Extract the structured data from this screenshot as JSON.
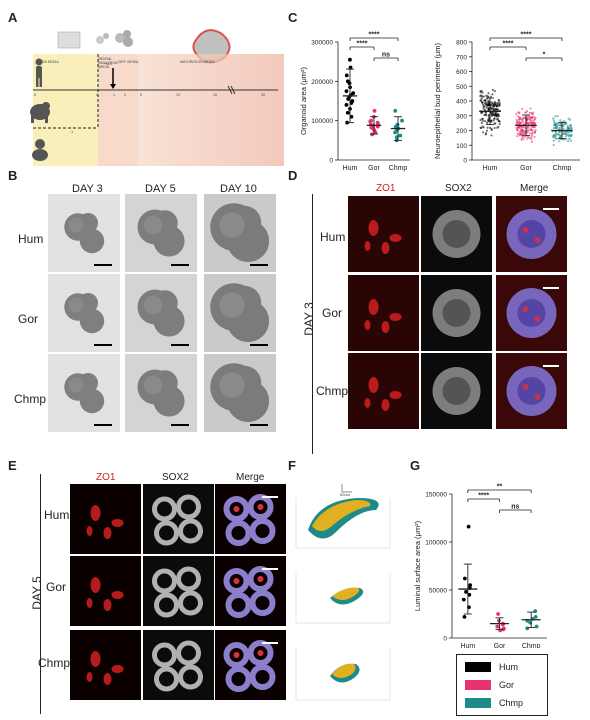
{
  "panels": {
    "A": "A",
    "B": "B",
    "C": "C",
    "D": "D",
    "E": "E",
    "F": "F",
    "G": "G"
  },
  "species": [
    "Hum",
    "Gor",
    "Chmp"
  ],
  "panel_a": {
    "stages": [
      "EB MEDIA",
      "NEURAL INDUCTION MEDIA",
      "DIFF. MEDIA",
      "MATURATION MEDIA"
    ],
    "mg_label": "+MG",
    "ticks": [
      "-5",
      "0",
      "1",
      "2",
      "5",
      "10",
      "15",
      "20",
      "25"
    ],
    "day_minus1": "-1"
  },
  "panel_b": {
    "days": [
      "DAY 3",
      "DAY 5",
      "DAY 10"
    ],
    "rows": [
      "Hum",
      "Gor",
      "Chmp"
    ]
  },
  "panel_d": {
    "day": "DAY 3",
    "channels": [
      "ZO1",
      "SOX2",
      "Merge"
    ],
    "rows": [
      "Hum",
      "Gor",
      "Chmp"
    ]
  },
  "panel_e": {
    "day": "DAY 5",
    "channels": [
      "ZO1",
      "SOX2",
      "Merge"
    ],
    "rows": [
      "Hum",
      "Gor",
      "Chmp"
    ]
  },
  "panel_f": {
    "scale": "50um"
  },
  "legend": [
    {
      "name": "Hum",
      "color": "#000000"
    },
    {
      "name": "Gor",
      "color": "#e8336f"
    },
    {
      "name": "Chmp",
      "color": "#1f8a8a"
    }
  ],
  "chart_data": [
    {
      "type": "scatter",
      "title": "",
      "ylabel": "Organoid area (μm²)",
      "categories": [
        "Hum",
        "Gor",
        "Chmp"
      ],
      "ylim": [
        0,
        300000
      ],
      "yticks": [
        "0",
        "100000",
        "200000",
        "300000"
      ],
      "colors": [
        "#000000",
        "#e8336f",
        "#1f8a8a"
      ],
      "means": [
        163000,
        88000,
        80000
      ],
      "sd": [
        68000,
        22000,
        30000
      ],
      "points": [
        [
          255000,
          235000,
          215000,
          200000,
          195000,
          185000,
          175000,
          170000,
          165000,
          160000,
          155000,
          150000,
          145000,
          140000,
          130000,
          120000,
          110000,
          95000
        ],
        [
          125000,
          110000,
          100000,
          98000,
          95000,
          92000,
          90000,
          88000,
          85000,
          82000,
          80000,
          75000,
          70000,
          65000
        ],
        [
          125000,
          100000,
          90000,
          85000,
          80000,
          75000,
          70000,
          62000,
          58000,
          50000
        ]
      ],
      "significance": [
        {
          "pair": [
            0,
            2
          ],
          "label": "****"
        },
        {
          "pair": [
            0,
            1
          ],
          "label": "****"
        },
        {
          "pair": [
            1,
            2
          ],
          "label": "ns"
        }
      ]
    },
    {
      "type": "scatter",
      "title": "",
      "ylabel": "Neuroepithelial bud perimeter (μm)",
      "categories": [
        "Hum",
        "Gor",
        "Chmp"
      ],
      "ylim": [
        0,
        800
      ],
      "yticks": [
        "0",
        "100",
        "200",
        "300",
        "400",
        "500",
        "600",
        "700",
        "800"
      ],
      "colors": [
        "#000000",
        "#e8336f",
        "#1f8a8a"
      ],
      "means": [
        330,
        235,
        200
      ],
      "sd": [
        90,
        70,
        55
      ],
      "point_ranges": [
        [
          100,
          610
        ],
        [
          70,
          480
        ],
        [
          60,
          400
        ]
      ],
      "point_counts": [
        180,
        180,
        120
      ],
      "significance": [
        {
          "pair": [
            0,
            2
          ],
          "label": "****"
        },
        {
          "pair": [
            0,
            1
          ],
          "label": "****"
        },
        {
          "pair": [
            1,
            2
          ],
          "label": "*"
        }
      ]
    },
    {
      "type": "scatter",
      "title": "",
      "ylabel": "Luminal surface area (μm²)",
      "categories": [
        "Hum",
        "Gor",
        "Chmp"
      ],
      "ylim": [
        0,
        150000
      ],
      "yticks": [
        "0",
        "50000",
        "100000",
        "150000"
      ],
      "colors": [
        "#000000",
        "#e8336f",
        "#1f8a8a"
      ],
      "means": [
        51000,
        15000,
        19000
      ],
      "sd": [
        26000,
        6000,
        8000
      ],
      "points": [
        [
          116000,
          62000,
          55000,
          52000,
          48000,
          45000,
          40000,
          32000,
          22000
        ],
        [
          25000,
          18000,
          15000,
          14000,
          12000,
          10000,
          9000,
          8000
        ],
        [
          28000,
          22000,
          20000,
          18000,
          16000,
          12000,
          10000
        ]
      ],
      "significance": [
        {
          "pair": [
            0,
            2
          ],
          "label": "**"
        },
        {
          "pair": [
            0,
            1
          ],
          "label": "****"
        },
        {
          "pair": [
            1,
            2
          ],
          "label": "ns"
        }
      ]
    }
  ]
}
